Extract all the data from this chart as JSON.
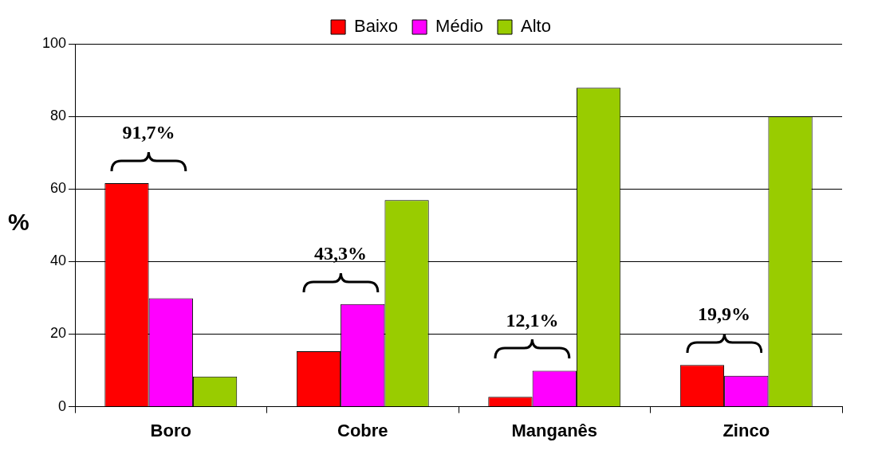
{
  "chart_data": {
    "type": "bar",
    "ylabel": "%",
    "categories": [
      "Boro",
      "Cobre",
      "Manganês",
      "Zinco"
    ],
    "series": [
      {
        "name": "Baixo",
        "color": "#ff0000",
        "values": [
          61.6,
          15.3,
          2.7,
          11.5
        ]
      },
      {
        "name": "Médio",
        "color": "#ff00ff",
        "values": [
          29.9,
          28.3,
          9.9,
          8.5
        ]
      },
      {
        "name": "Alto",
        "color": "#99cc00",
        "values": [
          8.3,
          56.9,
          87.9,
          80
        ]
      }
    ],
    "ylim": [
      0,
      100
    ],
    "yticks": [
      0,
      20,
      40,
      60,
      80,
      100
    ],
    "grid": "y",
    "legend": "top",
    "annotations": [
      "91,7%",
      "43,3%",
      "12,1%",
      "19,9%"
    ]
  }
}
